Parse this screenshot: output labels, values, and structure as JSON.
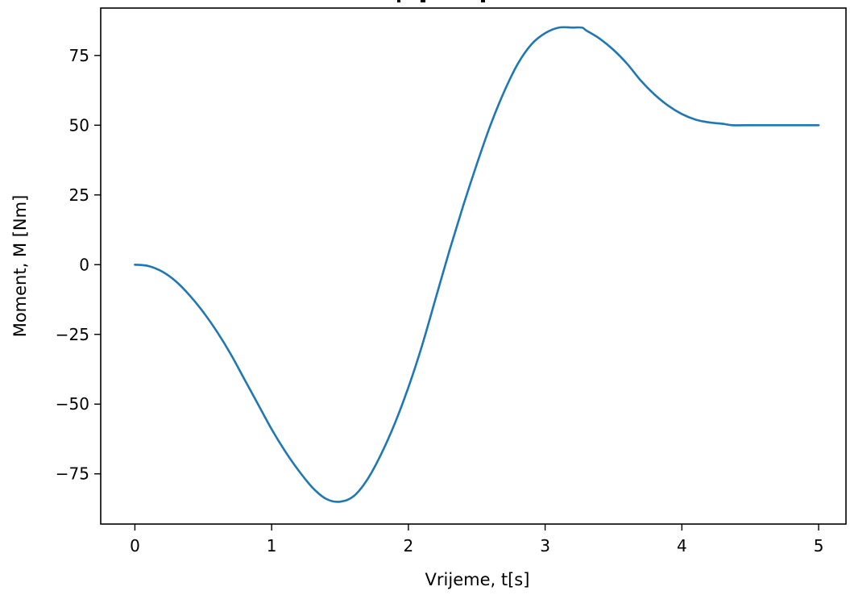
{
  "chart_data": {
    "type": "line",
    "title": "",
    "xlabel": "Vrijeme, t[s]",
    "ylabel": "Moment, M [Nm]",
    "xlim": [
      -0.25,
      5.2
    ],
    "ylim": [
      -93,
      92
    ],
    "x_ticks": [
      0,
      1,
      2,
      3,
      4,
      5
    ],
    "y_ticks": [
      75,
      50,
      25,
      0,
      -25,
      -50,
      -75
    ],
    "x_tick_labels": [
      "0",
      "1",
      "2",
      "3",
      "4",
      "5"
    ],
    "y_tick_labels": [
      "75",
      "50",
      "25",
      "0",
      "−25",
      "−50",
      "−75"
    ],
    "grid": false,
    "series": [
      {
        "color": "#1f77b4",
        "x": [
          0,
          0.1,
          0.2,
          0.3,
          0.4,
          0.5,
          0.6,
          0.7,
          0.8,
          0.9,
          1.0,
          1.1,
          1.2,
          1.3,
          1.4,
          1.5,
          1.6,
          1.7,
          1.8,
          1.9,
          2.0,
          2.1,
          2.2,
          2.3,
          2.4,
          2.5,
          2.6,
          2.7,
          2.8,
          2.9,
          3.0,
          3.1,
          3.2,
          3.27,
          3.3,
          3.4,
          3.5,
          3.6,
          3.7,
          3.8,
          3.9,
          4.0,
          4.1,
          4.2,
          4.3,
          4.37,
          4.5,
          4.6,
          4.7,
          4.8,
          4.9,
          5.0
        ],
        "y": [
          0,
          -0.5,
          -2.5,
          -6,
          -11,
          -17,
          -24,
          -32,
          -41,
          -50,
          -59,
          -67,
          -74,
          -80,
          -84,
          -85,
          -83,
          -77,
          -68,
          -57,
          -44,
          -29,
          -12,
          5,
          21,
          36,
          50,
          62,
          72,
          79,
          83,
          85,
          85,
          85,
          84,
          81,
          77,
          72,
          66,
          61,
          57,
          54,
          52,
          51,
          50.5,
          50,
          50,
          50,
          50,
          50,
          50,
          50
        ]
      }
    ]
  }
}
